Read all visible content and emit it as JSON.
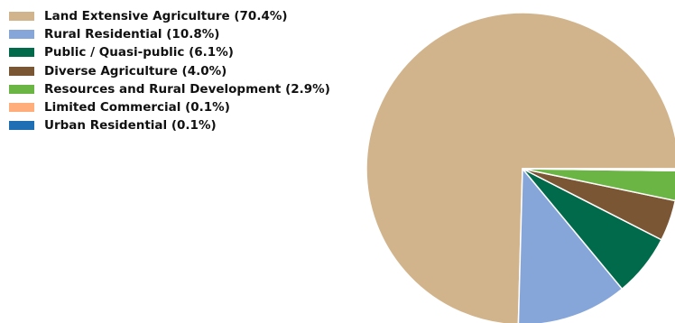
{
  "chart_data": {
    "type": "pie",
    "legend_position": "top-left",
    "slice_edge_color": "#ffffff",
    "start": "counterclockwise from 3 o'clock",
    "slices": [
      {
        "label": "Land Extensive Agriculture (70.4%)",
        "value": 70.4,
        "color": "#d2b48c"
      },
      {
        "label": "Rural Residential (10.8%)",
        "value": 10.8,
        "color": "#86a6da"
      },
      {
        "label": "Public / Quasi-public (6.1%)",
        "value": 6.1,
        "color": "#006a4a"
      },
      {
        "label": "Diverse Agriculture (4.0%)",
        "value": 4.0,
        "color": "#7b5635"
      },
      {
        "label": "Resources and Rural Development (2.9%)",
        "value": 2.9,
        "color": "#6ab544"
      },
      {
        "label": "Limited Commercial (0.1%)",
        "value": 0.1,
        "color": "#ffad7a"
      },
      {
        "label": "Urban Residential (0.1%)",
        "value": 0.1,
        "color": "#1f6fb5"
      }
    ]
  }
}
